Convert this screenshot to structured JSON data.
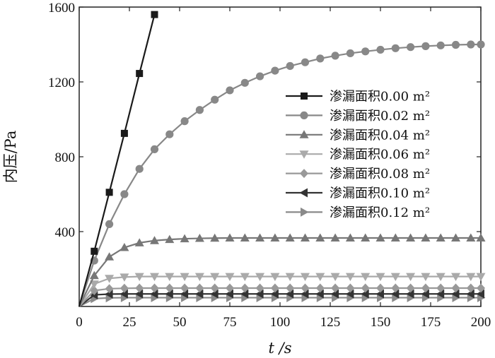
{
  "chart_data": {
    "type": "line",
    "title": "",
    "xlabel": "t /s",
    "ylabel": "内压/Pa",
    "xlim": [
      0,
      200
    ],
    "ylim": [
      0,
      1600
    ],
    "xticks": [
      0,
      25,
      50,
      75,
      100,
      125,
      150,
      175,
      200
    ],
    "yticks": [
      400,
      800,
      1200,
      1600
    ],
    "grid": false,
    "legend_position": "right",
    "series": [
      {
        "name": "渗漏面积0.00 m²",
        "color": "#1a1a1a",
        "marker": "square",
        "x": [
          0,
          7.5,
          15,
          22.5,
          30,
          37.5
        ],
        "y": [
          0,
          295,
          610,
          925,
          1245,
          1560
        ]
      },
      {
        "name": "渗漏面积0.02 m²",
        "color": "#888888",
        "marker": "circle",
        "x": [
          0,
          7.5,
          15,
          22.5,
          30,
          37.5,
          45,
          52.5,
          60,
          67.5,
          75,
          82.5,
          90,
          97.5,
          105,
          112.5,
          120,
          127.5,
          135,
          142.5,
          150,
          157.5,
          165,
          172.5,
          180,
          187.5,
          195,
          200
        ],
        "y": [
          0,
          245,
          440,
          600,
          735,
          840,
          920,
          990,
          1050,
          1105,
          1155,
          1195,
          1230,
          1260,
          1285,
          1305,
          1325,
          1340,
          1353,
          1363,
          1372,
          1380,
          1386,
          1391,
          1395,
          1398,
          1400,
          1400
        ]
      },
      {
        "name": "渗漏面积0.04 m²",
        "color": "#777777",
        "marker": "triangle-up",
        "x": [
          0,
          7.5,
          15,
          22.5,
          30,
          37.5,
          45,
          52.5,
          60,
          67.5,
          75,
          82.5,
          90,
          97.5,
          105,
          112.5,
          120,
          127.5,
          135,
          142.5,
          150,
          157.5,
          165,
          172.5,
          180,
          187.5,
          195,
          200
        ],
        "y": [
          0,
          165,
          265,
          315,
          340,
          352,
          358,
          362,
          364,
          365,
          366,
          366,
          366,
          366,
          366,
          366,
          366,
          366,
          366,
          366,
          366,
          366,
          366,
          366,
          366,
          366,
          366,
          366
        ]
      },
      {
        "name": "渗漏面积0.06 m²",
        "color": "#aaaaaa",
        "marker": "triangle-down",
        "x": [
          0,
          7.5,
          15,
          22.5,
          30,
          37.5,
          45,
          52.5,
          60,
          67.5,
          75,
          82.5,
          90,
          97.5,
          105,
          112.5,
          120,
          127.5,
          135,
          142.5,
          150,
          157.5,
          165,
          172.5,
          180,
          187.5,
          195,
          200
        ],
        "y": [
          0,
          120,
          150,
          157,
          160,
          160,
          160,
          160,
          160,
          160,
          160,
          160,
          160,
          160,
          160,
          160,
          160,
          160,
          160,
          160,
          160,
          160,
          160,
          160,
          160,
          160,
          160,
          160
        ]
      },
      {
        "name": "渗漏面积0.08 m²",
        "color": "#999999",
        "marker": "diamond",
        "x": [
          0,
          7.5,
          15,
          22.5,
          30,
          37.5,
          45,
          52.5,
          60,
          67.5,
          75,
          82.5,
          90,
          97.5,
          105,
          112.5,
          120,
          127.5,
          135,
          142.5,
          150,
          157.5,
          165,
          172.5,
          180,
          187.5,
          195,
          200
        ],
        "y": [
          0,
          85,
          95,
          97,
          98,
          98,
          98,
          98,
          98,
          98,
          98,
          98,
          98,
          98,
          98,
          98,
          98,
          98,
          98,
          98,
          98,
          98,
          98,
          98,
          98,
          98,
          98,
          98
        ]
      },
      {
        "name": "渗漏面积0.10 m²",
        "color": "#333333",
        "marker": "triangle-left",
        "x": [
          0,
          7.5,
          15,
          22.5,
          30,
          37.5,
          45,
          52.5,
          60,
          67.5,
          75,
          82.5,
          90,
          97.5,
          105,
          112.5,
          120,
          127.5,
          135,
          142.5,
          150,
          157.5,
          165,
          172.5,
          180,
          187.5,
          195,
          200
        ],
        "y": [
          0,
          62,
          66,
          67,
          67,
          67,
          67,
          67,
          67,
          67,
          67,
          67,
          67,
          67,
          67,
          67,
          67,
          67,
          67,
          67,
          67,
          67,
          67,
          67,
          67,
          67,
          67,
          67
        ]
      },
      {
        "name": "渗漏面积0.12 m²",
        "color": "#8a8a8a",
        "marker": "triangle-right",
        "x": [
          0,
          7.5,
          15,
          22.5,
          30,
          37.5,
          45,
          52.5,
          60,
          67.5,
          75,
          82.5,
          90,
          97.5,
          105,
          112.5,
          120,
          127.5,
          135,
          142.5,
          150,
          157.5,
          165,
          172.5,
          180,
          187.5,
          195,
          200
        ],
        "y": [
          0,
          42,
          46,
          47,
          47,
          47,
          47,
          47,
          47,
          47,
          47,
          47,
          47,
          47,
          47,
          47,
          47,
          47,
          47,
          47,
          47,
          47,
          47,
          47,
          47,
          47,
          47,
          47
        ]
      }
    ]
  }
}
